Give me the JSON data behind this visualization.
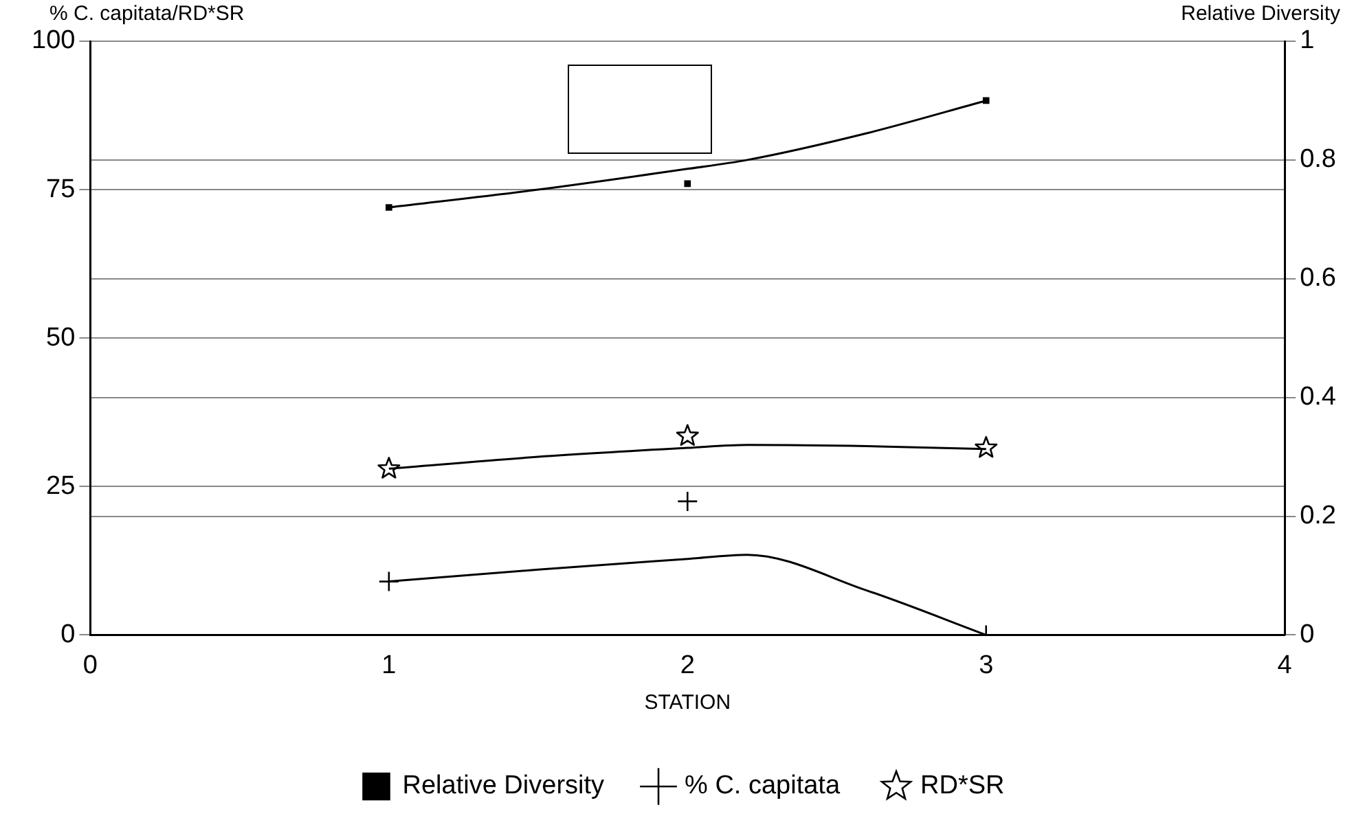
{
  "chart_data": {
    "type": "scatter",
    "xlabel": "STATION",
    "ylabel": "% C. capitata/RD*SR",
    "y2label": "Relative Diversity",
    "x": [
      1,
      2,
      3
    ],
    "series": [
      {
        "name": "Relative Diversity",
        "color": "#000000",
        "values": [
          0.72,
          0.76,
          0.9
        ],
        "axis": "y2",
        "marker": "square"
      },
      {
        "name": "% C. capitata",
        "color": "#000000",
        "values": [
          9,
          22.5,
          0
        ],
        "marker": "cross"
      },
      {
        "name": "RD*SR",
        "color": "#000000",
        "values": [
          28,
          33.5,
          31.5
        ],
        "marker": "star"
      },
      {
        "type": "line",
        "color": "#000000",
        "x": [
          1,
          1.5,
          2,
          2.2,
          2.6,
          3
        ],
        "values": [
          0.72,
          0.75,
          0.785,
          0.8,
          0.845,
          0.9
        ],
        "axis": "y2",
        "marker": "none"
      },
      {
        "type": "line",
        "color": "#000000",
        "x": [
          1,
          1.5,
          2,
          2.2,
          2.6,
          3
        ],
        "values": [
          9,
          11,
          12.8,
          13.5,
          7.5,
          0
        ],
        "marker": "none"
      },
      {
        "type": "line",
        "color": "#000000",
        "x": [
          1,
          1.5,
          2,
          2.2,
          2.6,
          3
        ],
        "values": [
          28,
          30,
          31.5,
          32,
          31.8,
          31.3
        ],
        "marker": "none"
      }
    ],
    "xlim": [
      0,
      4
    ],
    "xticks": [
      0,
      1,
      2,
      3,
      4
    ],
    "ylim": [
      0,
      100
    ],
    "yticks": [
      0,
      25,
      50,
      75,
      100
    ],
    "y2lim": [
      0,
      1
    ],
    "y2ticks": [
      0,
      0.2,
      0.4,
      0.6,
      0.8,
      1
    ],
    "grid": "y",
    "legend": "bottom"
  }
}
